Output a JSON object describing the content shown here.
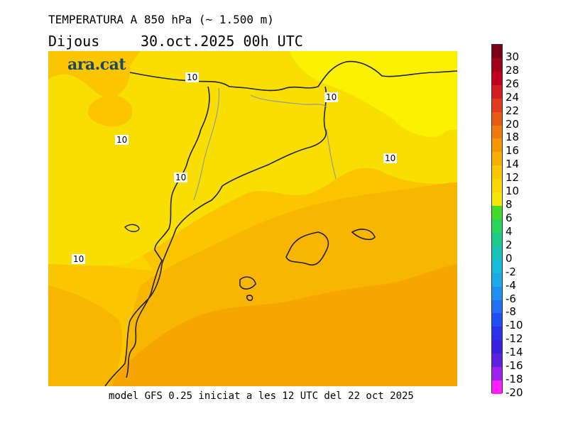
{
  "header": {
    "title": "TEMPERATURA A 850 hPa (~ 1.500 m)",
    "day": "Dijous",
    "datetime": "30.oct.2025 00h UTC"
  },
  "brand": {
    "logo_text": "ara.cat"
  },
  "map": {
    "variable": "temperature at 850 hPa",
    "contour_labels": [
      "10",
      "10",
      "10",
      "10",
      "10",
      "10"
    ]
  },
  "footer": {
    "model_text": "model GFS 0.25 iniciat a les 12 UTC del 22 oct 2025"
  },
  "colorbar": {
    "ticks": [
      "30",
      "28",
      "26",
      "24",
      "22",
      "20",
      "18",
      "16",
      "14",
      "12",
      "10",
      "8",
      "6",
      "4",
      "2",
      "0",
      "-2",
      "-4",
      "-6",
      "-8",
      "-10",
      "-12",
      "-14",
      "-16",
      "-18",
      "-20"
    ],
    "colors": [
      "#7a0015",
      "#a00018",
      "#c0001e",
      "#d21e1e",
      "#e23a20",
      "#ea5a14",
      "#f07a0c",
      "#f59800",
      "#f8b000",
      "#fac800",
      "#f9d800",
      "#f5e800",
      "#3fdc2a",
      "#2ad35a",
      "#1ecb8a",
      "#1ac3b6",
      "#18bcd8",
      "#1aaae8",
      "#1e90f0",
      "#2070f5",
      "#2050f2",
      "#2a32ea",
      "#3a20e0",
      "#6020e0",
      "#a020f0",
      "#ff20ff"
    ]
  }
}
